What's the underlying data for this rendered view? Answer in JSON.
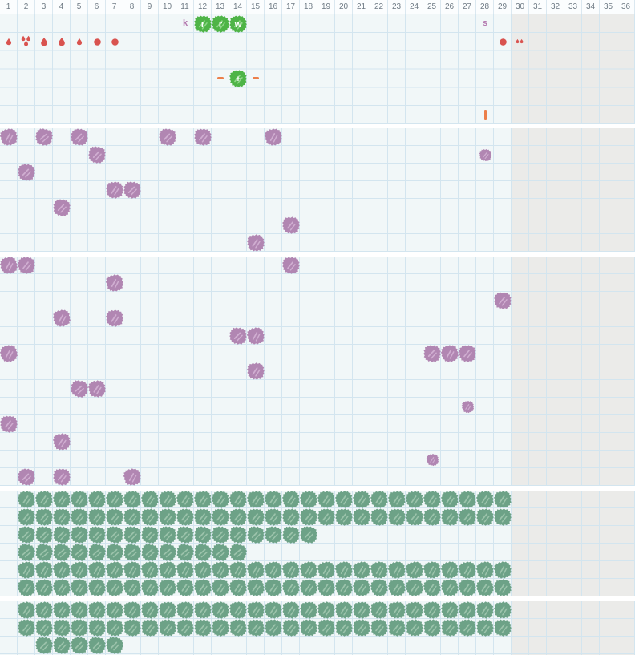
{
  "ruler": {
    "numbers": [
      "1",
      "2",
      "3",
      "4",
      "5",
      "6",
      "7",
      "8",
      "9",
      "10",
      "11",
      "12",
      "13",
      "14",
      "15",
      "16",
      "17",
      "18",
      "19",
      "20",
      "21",
      "22",
      "23",
      "24",
      "25",
      "26",
      "27",
      "28",
      "29",
      "30",
      "31",
      "32",
      "33",
      "34",
      "35",
      "36"
    ]
  },
  "controls": {
    "labels": [
      {
        "glyph": "k",
        "row": 1,
        "col": 11
      },
      {
        "glyph": "s",
        "row": 1,
        "col": 28
      }
    ],
    "seed_buttons": [
      {
        "letter": "r",
        "row": 1,
        "col": 12
      },
      {
        "letter": "r",
        "row": 1,
        "col": 13
      },
      {
        "letter": "w",
        "row": 1,
        "col": 14
      }
    ],
    "plus_button": {
      "letter": "+",
      "row": 4,
      "col": 14
    },
    "minus_buttons": [
      {
        "row": 4,
        "col": 13
      },
      {
        "row": 4,
        "col": 15
      }
    ],
    "bar_marker": {
      "row": 6,
      "col": 28
    },
    "water_marks": [
      {
        "row": 2,
        "col": 1,
        "variant": "drop-small"
      },
      {
        "row": 2,
        "col": 2,
        "variant": "drop-triple"
      },
      {
        "row": 2,
        "col": 3,
        "variant": "drop"
      },
      {
        "row": 2,
        "col": 4,
        "variant": "drop"
      },
      {
        "row": 2,
        "col": 5,
        "variant": "drop-small"
      },
      {
        "row": 2,
        "col": 6,
        "variant": "dot"
      },
      {
        "row": 2,
        "col": 7,
        "variant": "dot"
      },
      {
        "row": 2,
        "col": 29,
        "variant": "dot"
      },
      {
        "row": 2,
        "col": 30,
        "variant": "drop-double"
      }
    ]
  },
  "weeds": {
    "band2": [
      {
        "r": 1,
        "c": 1
      },
      {
        "r": 1,
        "c": 3
      },
      {
        "r": 1,
        "c": 5
      },
      {
        "r": 1,
        "c": 10
      },
      {
        "r": 1,
        "c": 12
      },
      {
        "r": 1,
        "c": 16
      },
      {
        "r": 2,
        "c": 6
      },
      {
        "r": 2,
        "c": 28,
        "size": "small"
      },
      {
        "r": 3,
        "c": 2
      },
      {
        "r": 4,
        "c": 7
      },
      {
        "r": 4,
        "c": 8
      },
      {
        "r": 5,
        "c": 4
      },
      {
        "r": 6,
        "c": 17
      },
      {
        "r": 7,
        "c": 15
      }
    ],
    "band3": [
      {
        "r": 1,
        "c": 1
      },
      {
        "r": 1,
        "c": 2
      },
      {
        "r": 1,
        "c": 17
      },
      {
        "r": 2,
        "c": 7
      },
      {
        "r": 3,
        "c": 29
      },
      {
        "r": 4,
        "c": 4
      },
      {
        "r": 4,
        "c": 7
      },
      {
        "r": 5,
        "c": 14
      },
      {
        "r": 5,
        "c": 15
      },
      {
        "r": 6,
        "c": 1
      },
      {
        "r": 6,
        "c": 25
      },
      {
        "r": 6,
        "c": 26
      },
      {
        "r": 6,
        "c": 27
      },
      {
        "r": 7,
        "c": 15
      },
      {
        "r": 8,
        "c": 5
      },
      {
        "r": 8,
        "c": 6
      },
      {
        "r": 9,
        "c": 27,
        "size": "small"
      },
      {
        "r": 10,
        "c": 1
      },
      {
        "r": 11,
        "c": 4
      },
      {
        "r": 12,
        "c": 25,
        "size": "small"
      },
      {
        "r": 13,
        "c": 2
      },
      {
        "r": 13,
        "c": 4
      },
      {
        "r": 13,
        "c": 8
      }
    ]
  },
  "crops": {
    "band4": [
      {
        "r": 1,
        "from": 2,
        "to": 29
      },
      {
        "r": 2,
        "from": 2,
        "to": 29
      },
      {
        "r": 3,
        "from": 2,
        "to": 18
      },
      {
        "r": 4,
        "from": 2,
        "to": 14
      },
      {
        "r": 5,
        "from": 2,
        "to": 29
      },
      {
        "r": 6,
        "from": 2,
        "to": 29
      }
    ],
    "band5": [
      {
        "r": 1,
        "from": 2,
        "to": 29
      },
      {
        "r": 2,
        "from": 2,
        "to": 29
      },
      {
        "r": 3,
        "from": 3,
        "to": 7
      }
    ]
  },
  "colors": {
    "field_bg": "#f1f7f8",
    "locked_bg": "#ebebe9",
    "grid_line": "#d3e5ef",
    "ruler_bg": "#fbfdfe",
    "ruler_line": "#dbe8f0",
    "ruler_text": "#6e7a84",
    "red": "#d9534f",
    "orange": "#ec7f4a",
    "mauve": "#b377ae",
    "green": "#4eb447",
    "green_streak": "#8ed788",
    "purple": "#b186b2",
    "purple_streak": "#d0aed1",
    "sage": "#6da287",
    "sage_streak": "#9cc3ab",
    "bush_letter": "#ffffff"
  }
}
